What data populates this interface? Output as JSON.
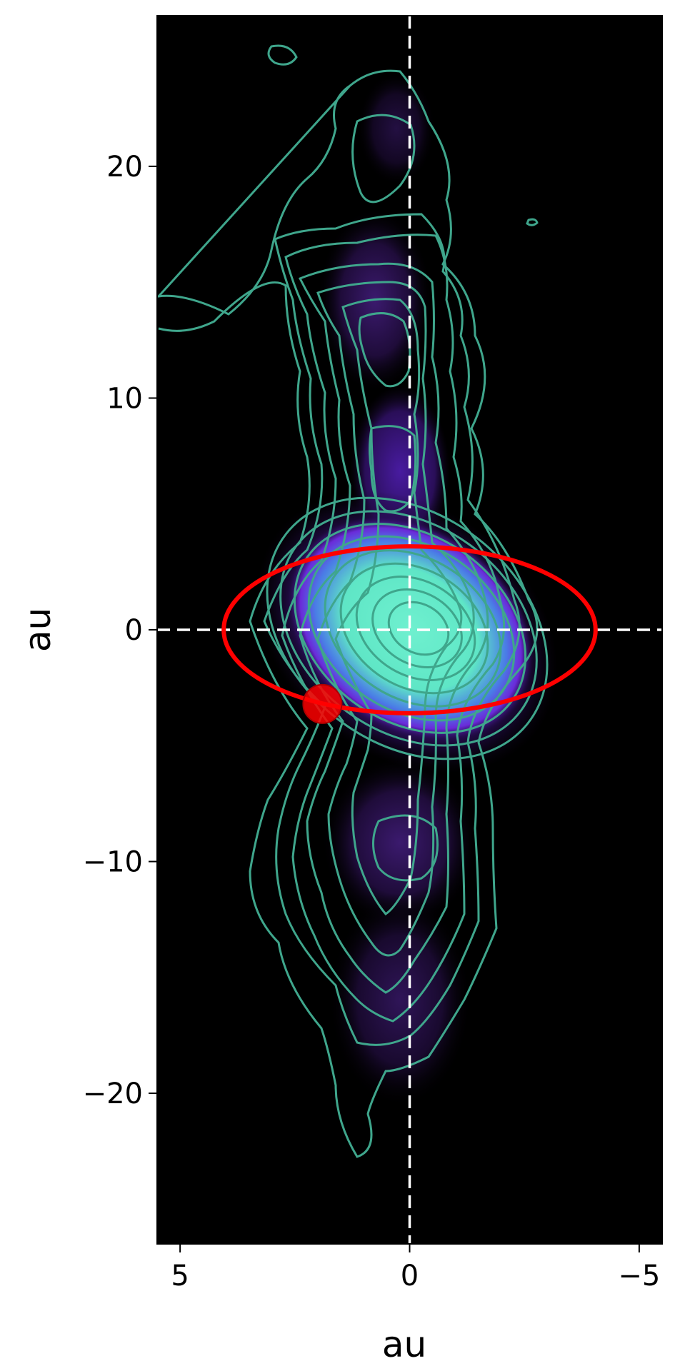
{
  "chart_data": {
    "type": "contour",
    "title": "",
    "xlabel": "au",
    "ylabel": "au",
    "xlim": [
      5.5,
      -5.5
    ],
    "ylim": [
      -26.5,
      26.5
    ],
    "x_reversed": true,
    "grid": false,
    "xticks": [
      5,
      0,
      -5
    ],
    "yticks": [
      20,
      10,
      0,
      -10,
      -20
    ],
    "xtick_labels": [
      "5",
      "0",
      "−5"
    ],
    "ytick_labels": [
      "20",
      "10",
      "0",
      "−10",
      "−20"
    ],
    "background_color": "#000000",
    "contour_color": "#3fa68c",
    "reference_lines": [
      {
        "orientation": "vertical",
        "value": 0,
        "style": "dashed",
        "color": "#ffffff"
      },
      {
        "orientation": "horizontal",
        "value": 0,
        "style": "dashed",
        "color": "#ffffff"
      }
    ],
    "orbit": {
      "type": "ellipse",
      "center": [
        0,
        0
      ],
      "semi_major_x": 4.05,
      "semi_minor_y": 3.6,
      "color": "#ff0000"
    },
    "marker": {
      "x": 1.9,
      "y": -3.2,
      "color": "#ff0000"
    },
    "brightness_peak": {
      "x": -0.2,
      "y": 0.2
    }
  }
}
